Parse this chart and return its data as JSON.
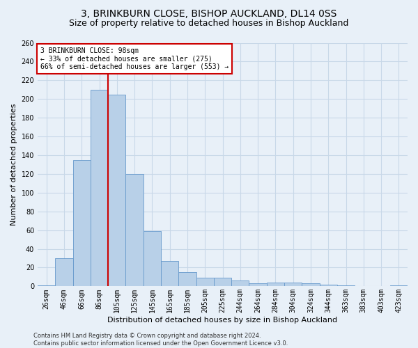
{
  "title1": "3, BRINKBURN CLOSE, BISHOP AUCKLAND, DL14 0SS",
  "title2": "Size of property relative to detached houses in Bishop Auckland",
  "xlabel": "Distribution of detached houses by size in Bishop Auckland",
  "ylabel": "Number of detached properties",
  "bar_labels": [
    "26sqm",
    "46sqm",
    "66sqm",
    "86sqm",
    "105sqm",
    "125sqm",
    "145sqm",
    "165sqm",
    "185sqm",
    "205sqm",
    "225sqm",
    "244sqm",
    "264sqm",
    "284sqm",
    "304sqm",
    "324sqm",
    "344sqm",
    "363sqm",
    "383sqm",
    "403sqm",
    "423sqm"
  ],
  "bar_values": [
    1,
    30,
    135,
    210,
    205,
    120,
    59,
    27,
    15,
    9,
    9,
    6,
    3,
    4,
    4,
    3,
    2,
    1,
    0,
    0,
    1
  ],
  "bar_color": "#b8d0e8",
  "bar_edge_color": "#6699cc",
  "red_line_index": 3.5,
  "annotation_text": "3 BRINKBURN CLOSE: 98sqm\n← 33% of detached houses are smaller (275)\n66% of semi-detached houses are larger (553) →",
  "annotation_box_color": "white",
  "annotation_box_edge_color": "#cc0000",
  "red_line_color": "#cc0000",
  "ylim": [
    0,
    260
  ],
  "yticks": [
    0,
    20,
    40,
    60,
    80,
    100,
    120,
    140,
    160,
    180,
    200,
    220,
    240,
    260
  ],
  "grid_color": "#c8d8e8",
  "bg_color": "#e8f0f8",
  "footer_text": "Contains HM Land Registry data © Crown copyright and database right 2024.\nContains public sector information licensed under the Open Government Licence v3.0.",
  "title1_fontsize": 10,
  "title2_fontsize": 9,
  "annotation_fontsize": 7,
  "axis_label_fontsize": 8,
  "tick_fontsize": 7,
  "footer_fontsize": 6
}
